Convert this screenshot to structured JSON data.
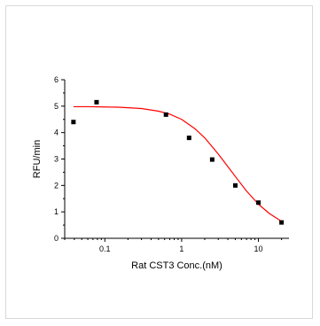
{
  "chart_data": {
    "type": "scatter",
    "title": "",
    "xlabel": "Rat CST3 Conc.(nM)",
    "ylabel": "RFU/min",
    "x_scale": "log",
    "xlim": [
      0.03,
      25
    ],
    "ylim": [
      0,
      6
    ],
    "x_ticks": [
      0.1,
      1,
      10
    ],
    "x_tick_labels": [
      "0.1",
      "1",
      "10"
    ],
    "y_ticks": [
      0,
      1,
      2,
      3,
      4,
      5,
      6
    ],
    "y_tick_labels": [
      "0",
      "1",
      "2",
      "3",
      "4",
      "5",
      "6"
    ],
    "grid": false,
    "series": [
      {
        "kind": "points",
        "color": "#000000",
        "x": [
          0.039,
          0.078,
          0.625,
          1.25,
          2.5,
          5,
          10,
          20
        ],
        "y": [
          4.4,
          5.15,
          4.68,
          3.8,
          2.98,
          2.0,
          1.35,
          0.6
        ]
      },
      {
        "kind": "fit-curve",
        "color": "#ff0000",
        "x": [
          0.039,
          0.06,
          0.1,
          0.15,
          0.2,
          0.3,
          0.5,
          0.7,
          1.0,
          1.5,
          2.0,
          3.0,
          4.0,
          5.0,
          7.0,
          10.0,
          14.0,
          20.0
        ],
        "y": [
          4.98,
          4.98,
          4.97,
          4.96,
          4.94,
          4.91,
          4.81,
          4.7,
          4.5,
          4.14,
          3.8,
          3.19,
          2.71,
          2.34,
          1.79,
          1.29,
          0.93,
          0.64
        ]
      }
    ]
  }
}
